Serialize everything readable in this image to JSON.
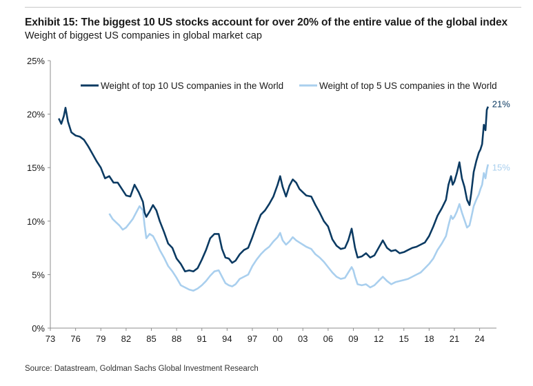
{
  "exhibit": {
    "title": "Exhibit 15: The biggest 10 US stocks account for over 20% of the entire value of the global index",
    "subtitle": "Weight of biggest US companies in global market cap",
    "source": "Source: Datastream, Goldman Sachs Global Investment Research"
  },
  "colors": {
    "top10": "#0b3a62",
    "top5": "#a9cfee",
    "axis": "#8c8c8c",
    "text": "#1a1a1a"
  },
  "chart_data": {
    "type": "line",
    "title": "Exhibit 15: The biggest 10 US stocks account for over 20% of the entire value of the global index",
    "subtitle": "Weight of biggest US companies in global market cap",
    "xlabel": "",
    "ylabel": "",
    "xlim": [
      1973,
      2026
    ],
    "ylim": [
      0,
      25
    ],
    "y_ticks": [
      0,
      5,
      10,
      15,
      20,
      25
    ],
    "y_tick_labels": [
      "0%",
      "5%",
      "10%",
      "15%",
      "20%",
      "25%"
    ],
    "x_ticks": [
      1973,
      1976,
      1979,
      1982,
      1985,
      1988,
      1991,
      1994,
      1997,
      2000,
      2003,
      2006,
      2009,
      2012,
      2015,
      2018,
      2021,
      2024
    ],
    "x_tick_labels": [
      "73",
      "76",
      "79",
      "82",
      "85",
      "88",
      "91",
      "94",
      "97",
      "00",
      "03",
      "06",
      "09",
      "12",
      "15",
      "18",
      "21",
      "24"
    ],
    "grid": false,
    "legend_position": "top",
    "series": [
      {
        "name": "Weight of top 10 US companies in the World",
        "end_label": "21%",
        "points": [
          [
            1974.0,
            19.6
          ],
          [
            1974.3,
            19.1
          ],
          [
            1974.6,
            19.8
          ],
          [
            1974.8,
            20.6
          ],
          [
            1975.1,
            19.3
          ],
          [
            1975.5,
            18.3
          ],
          [
            1976.0,
            18.0
          ],
          [
            1976.5,
            17.9
          ],
          [
            1977.0,
            17.6
          ],
          [
            1977.5,
            17.0
          ],
          [
            1978.0,
            16.3
          ],
          [
            1978.5,
            15.6
          ],
          [
            1979.0,
            15.0
          ],
          [
            1979.5,
            14.0
          ],
          [
            1980.0,
            14.2
          ],
          [
            1980.5,
            13.6
          ],
          [
            1981.0,
            13.6
          ],
          [
            1981.5,
            13.0
          ],
          [
            1982.0,
            12.4
          ],
          [
            1982.5,
            12.3
          ],
          [
            1983.0,
            13.4
          ],
          [
            1983.5,
            12.7
          ],
          [
            1984.0,
            11.8
          ],
          [
            1984.2,
            10.8
          ],
          [
            1984.4,
            10.4
          ],
          [
            1984.8,
            10.9
          ],
          [
            1985.2,
            11.5
          ],
          [
            1985.6,
            11.0
          ],
          [
            1986.0,
            10.0
          ],
          [
            1986.5,
            9.0
          ],
          [
            1987.0,
            7.9
          ],
          [
            1987.5,
            7.5
          ],
          [
            1988.0,
            6.5
          ],
          [
            1988.5,
            6.0
          ],
          [
            1989.0,
            5.3
          ],
          [
            1989.5,
            5.4
          ],
          [
            1990.0,
            5.3
          ],
          [
            1990.5,
            5.6
          ],
          [
            1991.0,
            6.4
          ],
          [
            1991.5,
            7.3
          ],
          [
            1992.0,
            8.4
          ],
          [
            1992.5,
            8.8
          ],
          [
            1993.0,
            8.8
          ],
          [
            1993.4,
            7.4
          ],
          [
            1993.8,
            6.6
          ],
          [
            1994.2,
            6.5
          ],
          [
            1994.6,
            6.1
          ],
          [
            1995.0,
            6.3
          ],
          [
            1995.5,
            6.9
          ],
          [
            1996.0,
            7.3
          ],
          [
            1996.5,
            7.5
          ],
          [
            1997.0,
            8.5
          ],
          [
            1997.5,
            9.6
          ],
          [
            1998.0,
            10.6
          ],
          [
            1998.5,
            11.0
          ],
          [
            1999.0,
            11.6
          ],
          [
            1999.5,
            12.3
          ],
          [
            2000.0,
            13.4
          ],
          [
            2000.3,
            14.2
          ],
          [
            2000.6,
            13.2
          ],
          [
            2001.0,
            12.3
          ],
          [
            2001.4,
            13.3
          ],
          [
            2001.8,
            13.9
          ],
          [
            2002.2,
            13.6
          ],
          [
            2002.6,
            13.0
          ],
          [
            2003.0,
            12.7
          ],
          [
            2003.4,
            12.4
          ],
          [
            2004.0,
            12.3
          ],
          [
            2004.5,
            11.5
          ],
          [
            2005.0,
            10.8
          ],
          [
            2005.5,
            10.0
          ],
          [
            2006.0,
            9.5
          ],
          [
            2006.5,
            8.3
          ],
          [
            2007.0,
            7.7
          ],
          [
            2007.5,
            7.4
          ],
          [
            2008.0,
            7.5
          ],
          [
            2008.4,
            8.2
          ],
          [
            2008.8,
            9.3
          ],
          [
            2009.0,
            8.4
          ],
          [
            2009.2,
            7.5
          ],
          [
            2009.5,
            6.6
          ],
          [
            2010.0,
            6.7
          ],
          [
            2010.5,
            7.0
          ],
          [
            2011.0,
            6.6
          ],
          [
            2011.5,
            6.8
          ],
          [
            2012.0,
            7.5
          ],
          [
            2012.5,
            8.2
          ],
          [
            2013.0,
            7.5
          ],
          [
            2013.5,
            7.2
          ],
          [
            2014.0,
            7.3
          ],
          [
            2014.5,
            7.0
          ],
          [
            2015.0,
            7.1
          ],
          [
            2015.5,
            7.3
          ],
          [
            2016.0,
            7.5
          ],
          [
            2016.5,
            7.6
          ],
          [
            2017.0,
            7.8
          ],
          [
            2017.5,
            8.0
          ],
          [
            2018.0,
            8.6
          ],
          [
            2018.5,
            9.5
          ],
          [
            2019.0,
            10.5
          ],
          [
            2019.5,
            11.2
          ],
          [
            2020.0,
            12.0
          ],
          [
            2020.3,
            13.4
          ],
          [
            2020.6,
            14.2
          ],
          [
            2020.8,
            13.4
          ],
          [
            2021.0,
            13.7
          ],
          [
            2021.3,
            14.5
          ],
          [
            2021.6,
            15.5
          ],
          [
            2021.9,
            14.0
          ],
          [
            2022.2,
            13.2
          ],
          [
            2022.5,
            12.0
          ],
          [
            2022.8,
            11.5
          ],
          [
            2023.0,
            12.6
          ],
          [
            2023.3,
            14.6
          ],
          [
            2023.6,
            15.6
          ],
          [
            2023.9,
            16.4
          ],
          [
            2024.1,
            16.7
          ],
          [
            2024.3,
            17.2
          ],
          [
            2024.5,
            19.0
          ],
          [
            2024.7,
            18.5
          ],
          [
            2024.85,
            20.4
          ],
          [
            2025.0,
            20.7
          ]
        ]
      },
      {
        "name": "Weight of top 5 US companies in the World",
        "end_label": "15%",
        "points": [
          [
            1980.0,
            10.7
          ],
          [
            1980.4,
            10.2
          ],
          [
            1980.8,
            9.9
          ],
          [
            1981.2,
            9.6
          ],
          [
            1981.6,
            9.2
          ],
          [
            1982.0,
            9.4
          ],
          [
            1982.4,
            9.8
          ],
          [
            1982.8,
            10.2
          ],
          [
            1983.2,
            10.8
          ],
          [
            1983.6,
            11.4
          ],
          [
            1984.0,
            11.0
          ],
          [
            1984.2,
            9.6
          ],
          [
            1984.4,
            8.4
          ],
          [
            1984.8,
            8.8
          ],
          [
            1985.2,
            8.6
          ],
          [
            1985.6,
            8.0
          ],
          [
            1986.0,
            7.3
          ],
          [
            1986.5,
            6.6
          ],
          [
            1987.0,
            5.8
          ],
          [
            1987.5,
            5.3
          ],
          [
            1988.0,
            4.7
          ],
          [
            1988.5,
            4.0
          ],
          [
            1989.0,
            3.8
          ],
          [
            1989.5,
            3.6
          ],
          [
            1990.0,
            3.5
          ],
          [
            1990.5,
            3.7
          ],
          [
            1991.0,
            4.0
          ],
          [
            1991.5,
            4.4
          ],
          [
            1992.0,
            4.9
          ],
          [
            1992.5,
            5.3
          ],
          [
            1993.0,
            5.4
          ],
          [
            1993.4,
            4.8
          ],
          [
            1993.8,
            4.2
          ],
          [
            1994.2,
            4.0
          ],
          [
            1994.6,
            3.9
          ],
          [
            1995.0,
            4.1
          ],
          [
            1995.5,
            4.6
          ],
          [
            1996.0,
            4.8
          ],
          [
            1996.5,
            5.0
          ],
          [
            1997.0,
            5.8
          ],
          [
            1997.5,
            6.4
          ],
          [
            1998.0,
            6.9
          ],
          [
            1998.5,
            7.3
          ],
          [
            1999.0,
            7.6
          ],
          [
            1999.5,
            8.1
          ],
          [
            2000.0,
            8.5
          ],
          [
            2000.3,
            8.9
          ],
          [
            2000.6,
            8.2
          ],
          [
            2001.0,
            7.8
          ],
          [
            2001.4,
            8.1
          ],
          [
            2001.8,
            8.5
          ],
          [
            2002.2,
            8.2
          ],
          [
            2002.6,
            8.0
          ],
          [
            2003.0,
            7.8
          ],
          [
            2003.4,
            7.6
          ],
          [
            2004.0,
            7.4
          ],
          [
            2004.5,
            6.9
          ],
          [
            2005.0,
            6.6
          ],
          [
            2005.5,
            6.2
          ],
          [
            2006.0,
            5.7
          ],
          [
            2006.5,
            5.2
          ],
          [
            2007.0,
            4.8
          ],
          [
            2007.5,
            4.6
          ],
          [
            2008.0,
            4.7
          ],
          [
            2008.4,
            5.2
          ],
          [
            2008.8,
            5.7
          ],
          [
            2009.0,
            5.4
          ],
          [
            2009.2,
            4.8
          ],
          [
            2009.5,
            4.1
          ],
          [
            2010.0,
            4.0
          ],
          [
            2010.5,
            4.1
          ],
          [
            2011.0,
            3.8
          ],
          [
            2011.5,
            4.0
          ],
          [
            2012.0,
            4.4
          ],
          [
            2012.5,
            4.8
          ],
          [
            2013.0,
            4.4
          ],
          [
            2013.5,
            4.1
          ],
          [
            2014.0,
            4.3
          ],
          [
            2014.5,
            4.4
          ],
          [
            2015.0,
            4.5
          ],
          [
            2015.5,
            4.6
          ],
          [
            2016.0,
            4.8
          ],
          [
            2016.5,
            5.0
          ],
          [
            2017.0,
            5.2
          ],
          [
            2017.5,
            5.6
          ],
          [
            2018.0,
            6.0
          ],
          [
            2018.5,
            6.5
          ],
          [
            2019.0,
            7.3
          ],
          [
            2019.5,
            7.9
          ],
          [
            2020.0,
            8.6
          ],
          [
            2020.3,
            9.6
          ],
          [
            2020.6,
            10.5
          ],
          [
            2020.8,
            10.2
          ],
          [
            2021.0,
            10.4
          ],
          [
            2021.3,
            10.9
          ],
          [
            2021.6,
            11.6
          ],
          [
            2021.9,
            10.8
          ],
          [
            2022.2,
            10.1
          ],
          [
            2022.5,
            9.4
          ],
          [
            2022.8,
            9.6
          ],
          [
            2023.0,
            10.3
          ],
          [
            2023.3,
            11.4
          ],
          [
            2023.6,
            12.0
          ],
          [
            2023.9,
            12.5
          ],
          [
            2024.1,
            13.0
          ],
          [
            2024.3,
            13.4
          ],
          [
            2024.5,
            14.5
          ],
          [
            2024.7,
            14.0
          ],
          [
            2024.85,
            14.8
          ],
          [
            2025.0,
            15.3
          ]
        ]
      }
    ]
  }
}
